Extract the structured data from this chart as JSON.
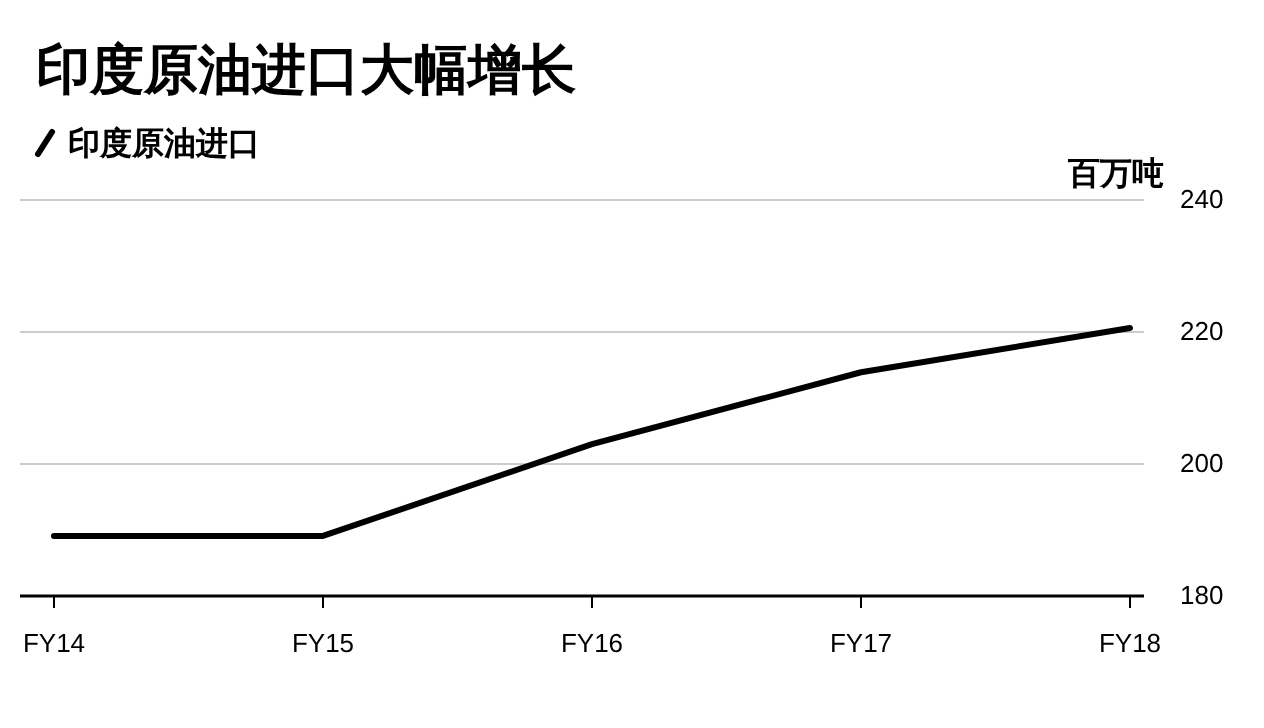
{
  "chart_data": {
    "type": "line",
    "title": "印度原油进口大幅增长",
    "ylabel": "百万吨",
    "categories": [
      "FY14",
      "FY15",
      "FY16",
      "FY17",
      "FY18"
    ],
    "series": [
      {
        "name": "印度原油进口",
        "color": "#000000",
        "values": [
          189.1,
          189.1,
          203.0,
          213.9,
          220.6
        ]
      }
    ],
    "ylim": [
      180,
      240
    ],
    "yticks": [
      180,
      200,
      220,
      240
    ],
    "grid": "y",
    "legend": "top left",
    "marker": "none",
    "line_style": "solid"
  }
}
